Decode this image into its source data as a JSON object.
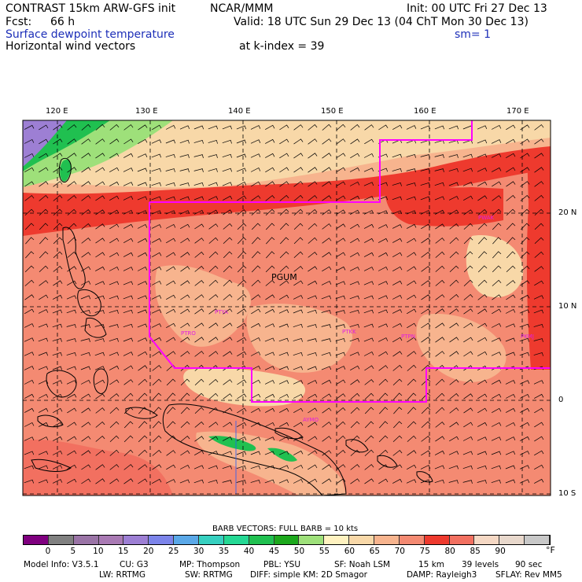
{
  "header": {
    "title": "CONTRAST 15km ARW-GFS init",
    "org": "NCAR/MMM",
    "init": "Init: 00 UTC Fri 27 Dec 13",
    "fcst_label": "Fcst:",
    "fcst_value": "66 h",
    "valid": "Valid: 18 UTC Sun 29 Dec 13 (04 ChT Mon 30 Dec 13)",
    "field1": "Surface dewpoint temperature",
    "smoothing": "sm= 1",
    "field2": "Horizontal wind vectors",
    "level": "at k-index =  39"
  },
  "map": {
    "lon_labels": [
      "120 E",
      "130 E",
      "140 E",
      "150 E",
      "160 E",
      "170 E"
    ],
    "lat_labels": [
      "20 N",
      "10 N",
      "0",
      "10 S"
    ],
    "stations": [
      {
        "id": "PGUM",
        "label": "PGUM",
        "color": "#000000"
      },
      {
        "id": "PTYA",
        "label": "PTYA",
        "color": "#e020e0"
      },
      {
        "id": "PTRO",
        "label": "PTRO",
        "color": "#e020e0"
      },
      {
        "id": "PTKK",
        "label": "PTKK",
        "color": "#e020e0"
      },
      {
        "id": "PTPN",
        "label": "PTPN",
        "color": "#e020e0"
      },
      {
        "id": "PKMJ",
        "label": "PKMJ",
        "color": "#e020e0"
      },
      {
        "id": "PWAK",
        "label": "PWAK",
        "color": "#e020e0"
      },
      {
        "id": "AYMO",
        "label": "AYMO",
        "color": "#e020e0"
      }
    ],
    "boundary_color": "#ff00ff"
  },
  "colorbar": {
    "title": "BARB VECTORS:  FULL BARB = 10 kts",
    "unit": "°F",
    "labels": [
      "0",
      "5",
      "10",
      "15",
      "20",
      "25",
      "30",
      "35",
      "40",
      "45",
      "50",
      "55",
      "60",
      "65",
      "70",
      "75",
      "80",
      "85",
      "90"
    ],
    "colors": [
      "#7f007f",
      "#808080",
      "#9a74a6",
      "#a97ab4",
      "#9d7fd4",
      "#7c84ea",
      "#5aa8e8",
      "#36d0c0",
      "#24d894",
      "#20c050",
      "#1ca81c",
      "#9ee07a",
      "#fff2c0",
      "#f8d8a8",
      "#f7b48e",
      "#f48a72",
      "#ee3a2e",
      "#f27060",
      "#f5d8c4",
      "#e8d8cc",
      "#c8c8c8"
    ]
  },
  "footer": {
    "line1": [
      "Model Info: V3.5.1",
      "CU: G3",
      "MP: Thompson",
      "PBL: YSU",
      "SF: Noah LSM",
      "15 km",
      "39 levels",
      "90 sec"
    ],
    "line2": [
      "LW: RRTMG",
      "SW: RRTMG",
      "DIFF: simple KM: 2D Smagor",
      "DAMP: Rayleigh3",
      "SFLAY: Rev MM5"
    ]
  }
}
